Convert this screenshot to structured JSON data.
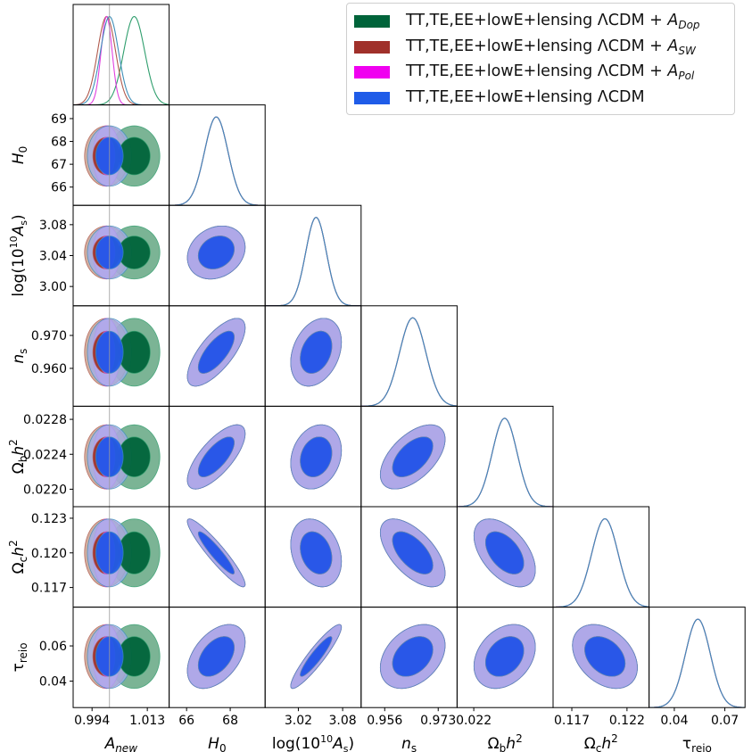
{
  "chart_data": {
    "type": "triangle-corner-plot",
    "parameters": [
      {
        "key": "Anew",
        "label": "A",
        "label_sub": "new",
        "label_y": "",
        "range": [
          0.9875,
          1.0205
        ],
        "xticks": [
          0.994,
          1.013
        ],
        "xtick_labels": [
          "0.994",
          "1.013"
        ],
        "yticks": [],
        "ytick_labels": []
      },
      {
        "key": "H0",
        "label": "H",
        "label_sub": "0",
        "label_y": "H",
        "range": [
          65.2,
          69.6
        ],
        "xticks": [
          66,
          68
        ],
        "xtick_labels": [
          "66",
          "68"
        ],
        "yticks": [
          66,
          67,
          68,
          69
        ],
        "ytick_labels": [
          "66",
          "67",
          "68",
          "69"
        ]
      },
      {
        "key": "logAs",
        "label": "log(10",
        "label_sup": "10",
        "label_y": "log(10",
        "range": [
          2.975,
          3.105
        ],
        "xticks": [
          3.02,
          3.08
        ],
        "xtick_labels": [
          "3.02",
          "3.08"
        ],
        "yticks": [
          3.0,
          3.04,
          3.08
        ],
        "ytick_labels": [
          "3.00",
          "3.04",
          "3.08"
        ]
      },
      {
        "key": "ns",
        "label": "n",
        "label_sub": "s",
        "label_y": "n",
        "range": [
          0.9485,
          0.979
        ],
        "xticks": [
          0.956,
          0.973
        ],
        "xtick_labels": [
          "0.956",
          "0.973"
        ],
        "yticks": [
          0.96,
          0.97
        ],
        "ytick_labels": [
          "0.960",
          "0.970"
        ]
      },
      {
        "key": "Obh2",
        "label": "Ω",
        "label_sub": "b",
        "label_y": "Ω",
        "range": [
          0.0218,
          0.02295
        ],
        "xticks": [
          0.022
        ],
        "xtick_labels": [
          "0.022"
        ],
        "yticks": [
          0.022,
          0.0224,
          0.0228
        ],
        "ytick_labels": [
          "0.0220",
          "0.0224",
          "0.0228"
        ]
      },
      {
        "key": "Och2",
        "label": "Ω",
        "label_sub": "c",
        "label_y": "Ω",
        "range": [
          0.1153,
          0.124
        ],
        "xticks": [
          0.117,
          0.122
        ],
        "xtick_labels": [
          "0.117",
          "0.122"
        ],
        "yticks": [
          0.117,
          0.12,
          0.123
        ],
        "ytick_labels": [
          "0.117",
          "0.120",
          "0.123"
        ]
      },
      {
        "key": "tau",
        "label": "τ",
        "label_sub": "reio",
        "label_y": "τ",
        "range": [
          0.025,
          0.082
        ],
        "xticks": [
          0.04,
          0.07
        ],
        "xtick_labels": [
          "0.04",
          "0.07"
        ],
        "yticks": [
          0.04,
          0.06
        ],
        "ytick_labels": [
          "0.04",
          "0.06"
        ]
      }
    ],
    "axis_labels": {
      "Anew": "Anew",
      "H0": "H0",
      "logAs": "log(10^10 As)",
      "ns": "ns",
      "Obh2": "Ωbh2",
      "Och2": "Ωch2",
      "tau": "τreio"
    },
    "reference_line": {
      "parameter": "Anew",
      "value": 1.0
    },
    "series": [
      {
        "name": "TT,TE,EE+lowE+lensing ΛCDM + ADop",
        "legend_main": "TT,TE,EE+lowE+lensing ΛCDM + ",
        "legend_A": "A",
        "legend_sub": "Dop",
        "color_line": "#2f9e6d",
        "color_inner": "#00643a",
        "color_outer": "#4f9b71",
        "means": [
          1.0085,
          67.36,
          3.044,
          0.9649,
          0.02237,
          0.12,
          0.054
        ],
        "sigmas": [
          0.0036,
          0.54,
          0.014,
          0.0042,
          0.00015,
          0.0012,
          0.0074
        ]
      },
      {
        "name": "TT,TE,EE+lowE+lensing ΛCDM + ASW",
        "legend_main": "TT,TE,EE+lowE+lensing ΛCDM + ",
        "legend_A": "A",
        "legend_sub": "SW",
        "color_line": "#b05a4d",
        "color_inner": "#a0302a",
        "color_outer": "#c2917f",
        "means": [
          0.999,
          67.36,
          3.044,
          0.9649,
          0.02237,
          0.12,
          0.054
        ],
        "sigmas": [
          0.0031,
          0.54,
          0.014,
          0.0042,
          0.00015,
          0.0012,
          0.0074
        ]
      },
      {
        "name": "TT,TE,EE+lowE+lensing ΛCDM + APol",
        "legend_main": "TT,TE,EE+lowE+lensing ΛCDM + ",
        "legend_A": "A",
        "legend_sub": "Pol",
        "color_line": "#e040e0",
        "color_inner": "#f000f0",
        "color_outer": "#f28cf2",
        "means": [
          0.999,
          67.36,
          3.044,
          0.9649,
          0.02237,
          0.12,
          0.054
        ],
        "sigmas": [
          0.0019,
          0.54,
          0.014,
          0.0042,
          0.00015,
          0.0012,
          0.0074
        ]
      },
      {
        "name": "TT,TE,EE+lowE+lensing ΛCDM",
        "legend_main": "TT,TE,EE+lowE+lensing ΛCDM",
        "legend_A": "",
        "legend_sub": "",
        "color_line": "#3f8fb8",
        "color_inner": "#1f5ce8",
        "color_outer": "#9db0ee",
        "means": [
          1.0,
          67.36,
          3.044,
          0.9649,
          0.02237,
          0.12,
          0.054
        ],
        "sigmas": [
          0.0031,
          0.54,
          0.014,
          0.0042,
          0.00015,
          0.0012,
          0.0074
        ]
      }
    ],
    "correlations": {
      "H0-logAs": 0.2,
      "H0-ns": 0.72,
      "H0-Obh2": 0.72,
      "H0-Och2": -0.93,
      "H0-tau": 0.45,
      "logAs-ns": 0.3,
      "logAs-Obh2": 0.2,
      "logAs-Och2": -0.25,
      "logAs-tau": 0.92,
      "ns-Obh2": 0.55,
      "ns-Och2": -0.6,
      "ns-tau": 0.35,
      "Obh2-Och2": -0.5,
      "Obh2-tau": 0.3,
      "Och2-tau": -0.35
    },
    "legend_placement": "top-right"
  }
}
